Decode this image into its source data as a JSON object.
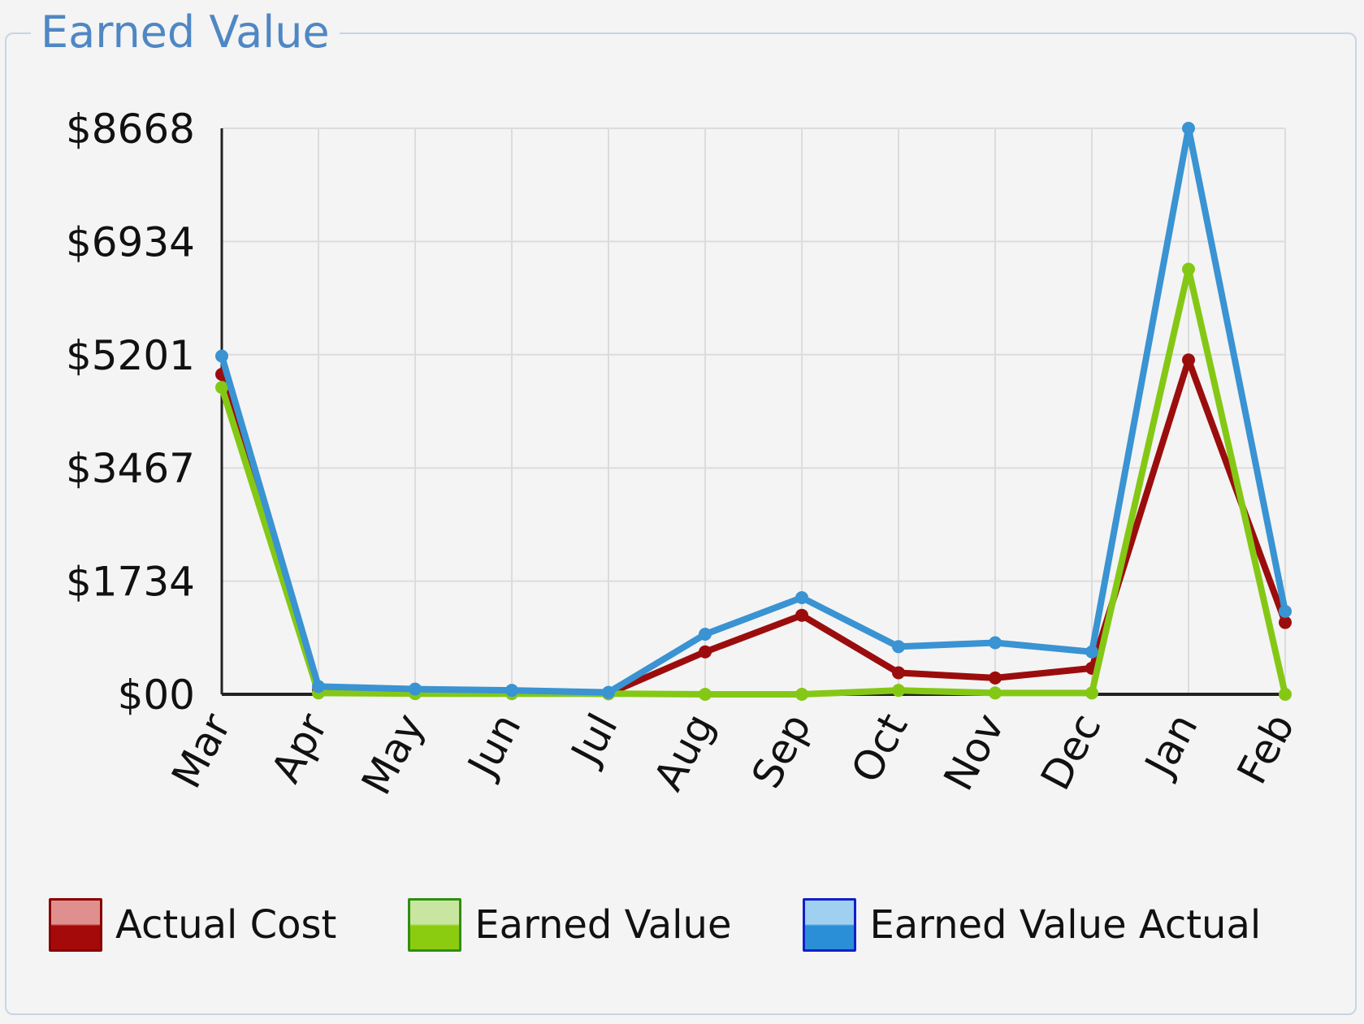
{
  "panel": {
    "title": "Earned Value"
  },
  "colors": {
    "actual_cost": "#9b0d0d",
    "earned_value": "#84c815",
    "earned_value_actual": "#3a93d2",
    "grid": "#dcdcdc",
    "axis": "#222222"
  },
  "chart_data": {
    "type": "line",
    "title": "",
    "xlabel": "",
    "ylabel": "",
    "categories": [
      "Mar",
      "Apr",
      "May",
      "Jun",
      "Jul",
      "Aug",
      "Sep",
      "Oct",
      "Nov",
      "Dec",
      "Jan",
      "Feb"
    ],
    "yticks": [
      0,
      1734,
      3467,
      5201,
      6934,
      8668
    ],
    "ytick_labels": [
      "$00",
      "$1734",
      "$3467",
      "$5201",
      "$6934",
      "$8668"
    ],
    "ylim": [
      0,
      8668
    ],
    "grid": true,
    "legend_position": "bottom",
    "series": [
      {
        "name": "Actual Cost",
        "values": [
          4900,
          60,
          30,
          20,
          10,
          650,
          1210,
          330,
          250,
          400,
          5120,
          1100
        ]
      },
      {
        "name": "Earned Value",
        "values": [
          4700,
          20,
          10,
          10,
          10,
          0,
          0,
          60,
          20,
          20,
          6510,
          0
        ]
      },
      {
        "name": "Earned Value Actual",
        "values": [
          5180,
          120,
          80,
          60,
          30,
          920,
          1480,
          730,
          790,
          650,
          8668,
          1270
        ]
      }
    ]
  },
  "legend": [
    {
      "label": "Actual Cost",
      "fill_top": "#e08f8f",
      "fill_bottom": "#a50a0a",
      "border": "#8a0000"
    },
    {
      "label": "Earned Value",
      "fill_top": "#c8e6a0",
      "fill_bottom": "#8ccc10",
      "border": "#2f8f10"
    },
    {
      "label": "Earned Value Actual",
      "fill_top": "#9fd0ef",
      "fill_bottom": "#2b8fd8",
      "border": "#1020c8"
    }
  ]
}
